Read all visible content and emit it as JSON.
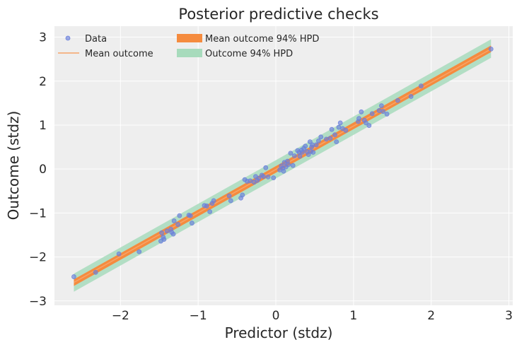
{
  "chart_data": {
    "type": "scatter",
    "title": "Posterior predictive checks",
    "xlabel": "Predictor (stdz)",
    "ylabel": "Outcome (stdz)",
    "xlim": [
      -2.85,
      3.05
    ],
    "ylim": [
      -3.1,
      3.25
    ],
    "xticks": [
      -2,
      -1,
      0,
      1,
      2,
      3
    ],
    "xtick_labels": [
      "−2",
      "−1",
      "0",
      "1",
      "2",
      "3"
    ],
    "yticks": [
      -3,
      -2,
      -1,
      0,
      1,
      2,
      3
    ],
    "ytick_labels": [
      "−3",
      "−2",
      "−1",
      "0",
      "1",
      "2",
      "3"
    ],
    "grid": true,
    "legend_placement": "top-left",
    "colors": {
      "background": "#eeeeee",
      "grid": "#ffffff",
      "data": "#6a7fdc",
      "mean_line": "#f6a469",
      "mean_hpd": "#f58b3e",
      "outcome_hpd": "#a7dbbc"
    },
    "series": [
      {
        "name": "Data",
        "kind": "points",
        "x": [
          -2.6,
          -2.32,
          -2.02,
          -1.76,
          -1.48,
          -1.47,
          -1.45,
          -1.44,
          -1.4,
          -1.35,
          -1.34,
          -1.32,
          -1.31,
          -1.26,
          -1.24,
          -1.12,
          -1.1,
          -1.08,
          -0.92,
          -0.89,
          -0.85,
          -0.82,
          -0.8,
          -0.6,
          -0.58,
          -0.45,
          -0.43,
          -0.4,
          -0.37,
          -0.33,
          -0.28,
          -0.26,
          -0.24,
          -0.22,
          -0.18,
          -0.16,
          -0.13,
          -0.1,
          -0.03,
          0.05,
          0.07,
          0.09,
          0.1,
          0.11,
          0.13,
          0.15,
          0.16,
          0.19,
          0.22,
          0.24,
          0.28,
          0.3,
          0.31,
          0.33,
          0.34,
          0.36,
          0.38,
          0.4,
          0.42,
          0.44,
          0.45,
          0.46,
          0.47,
          0.48,
          0.52,
          0.55,
          0.58,
          0.65,
          0.7,
          0.72,
          0.76,
          0.78,
          0.81,
          0.83,
          0.86,
          0.9,
          1.06,
          1.07,
          1.1,
          1.14,
          1.16,
          1.2,
          1.24,
          1.33,
          1.36,
          1.38,
          1.43,
          1.57,
          1.74,
          1.87,
          2.77
        ],
        "y": [
          -2.45,
          -2.35,
          -1.93,
          -1.88,
          -1.64,
          -1.45,
          -1.55,
          -1.6,
          -1.41,
          -1.37,
          -1.44,
          -1.48,
          -1.18,
          -1.26,
          -1.06,
          -1.05,
          -1.06,
          -1.23,
          -0.83,
          -0.84,
          -0.97,
          -0.78,
          -0.72,
          -0.61,
          -0.72,
          -0.66,
          -0.59,
          -0.24,
          -0.28,
          -0.27,
          -0.3,
          -0.17,
          -0.26,
          -0.21,
          -0.14,
          -0.17,
          0.03,
          -0.18,
          -0.2,
          -0.02,
          0.07,
          0.02,
          -0.05,
          0.15,
          0.05,
          0.18,
          0.1,
          0.36,
          0.08,
          0.3,
          0.42,
          0.38,
          0.29,
          0.43,
          0.38,
          0.47,
          0.52,
          0.4,
          0.33,
          0.62,
          0.4,
          0.5,
          0.55,
          0.38,
          0.55,
          0.64,
          0.73,
          0.68,
          0.7,
          0.9,
          0.78,
          0.62,
          0.95,
          1.05,
          0.92,
          0.88,
          1.08,
          1.15,
          1.3,
          1.11,
          1.05,
          0.99,
          1.26,
          1.33,
          1.44,
          1.31,
          1.25,
          1.56,
          1.65,
          1.89,
          2.73
        ]
      },
      {
        "name": "Mean outcome",
        "kind": "line",
        "x": [
          -2.6,
          2.77
        ],
        "y": [
          -2.58,
          2.73
        ]
      },
      {
        "name": "Mean outcome 94% HPD",
        "kind": "band",
        "x": [
          -2.6,
          2.77
        ],
        "lower": [
          -2.66,
          2.66
        ],
        "upper": [
          -2.51,
          2.81
        ]
      },
      {
        "name": "Outcome 94% HPD",
        "kind": "band",
        "x": [
          -2.6,
          2.77
        ],
        "lower": [
          -2.79,
          2.53
        ],
        "upper": [
          -2.38,
          2.95
        ]
      }
    ]
  }
}
